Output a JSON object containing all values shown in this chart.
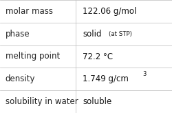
{
  "rows": [
    {
      "label": "molar mass",
      "value": "122.06 g/mol",
      "sup": null,
      "note": null
    },
    {
      "label": "phase",
      "value": "solid",
      "sup": null,
      "note": "(at STP)"
    },
    {
      "label": "melting point",
      "value": "72.2 °C",
      "sup": null,
      "note": null
    },
    {
      "label": "density",
      "value": "1.749 g/cm",
      "sup": "3",
      "note": null
    },
    {
      "label": "solubility in water",
      "value": "soluble",
      "sup": null,
      "note": null
    }
  ],
  "col_split": 0.44,
  "background_color": "#ffffff",
  "line_color": "#bbbbbb",
  "label_fontsize": 8.5,
  "value_fontsize": 8.5,
  "note_fontsize": 6.2,
  "sup_fontsize": 6.0,
  "label_color": "#222222",
  "value_color": "#111111",
  "font_family": "DejaVu Sans"
}
